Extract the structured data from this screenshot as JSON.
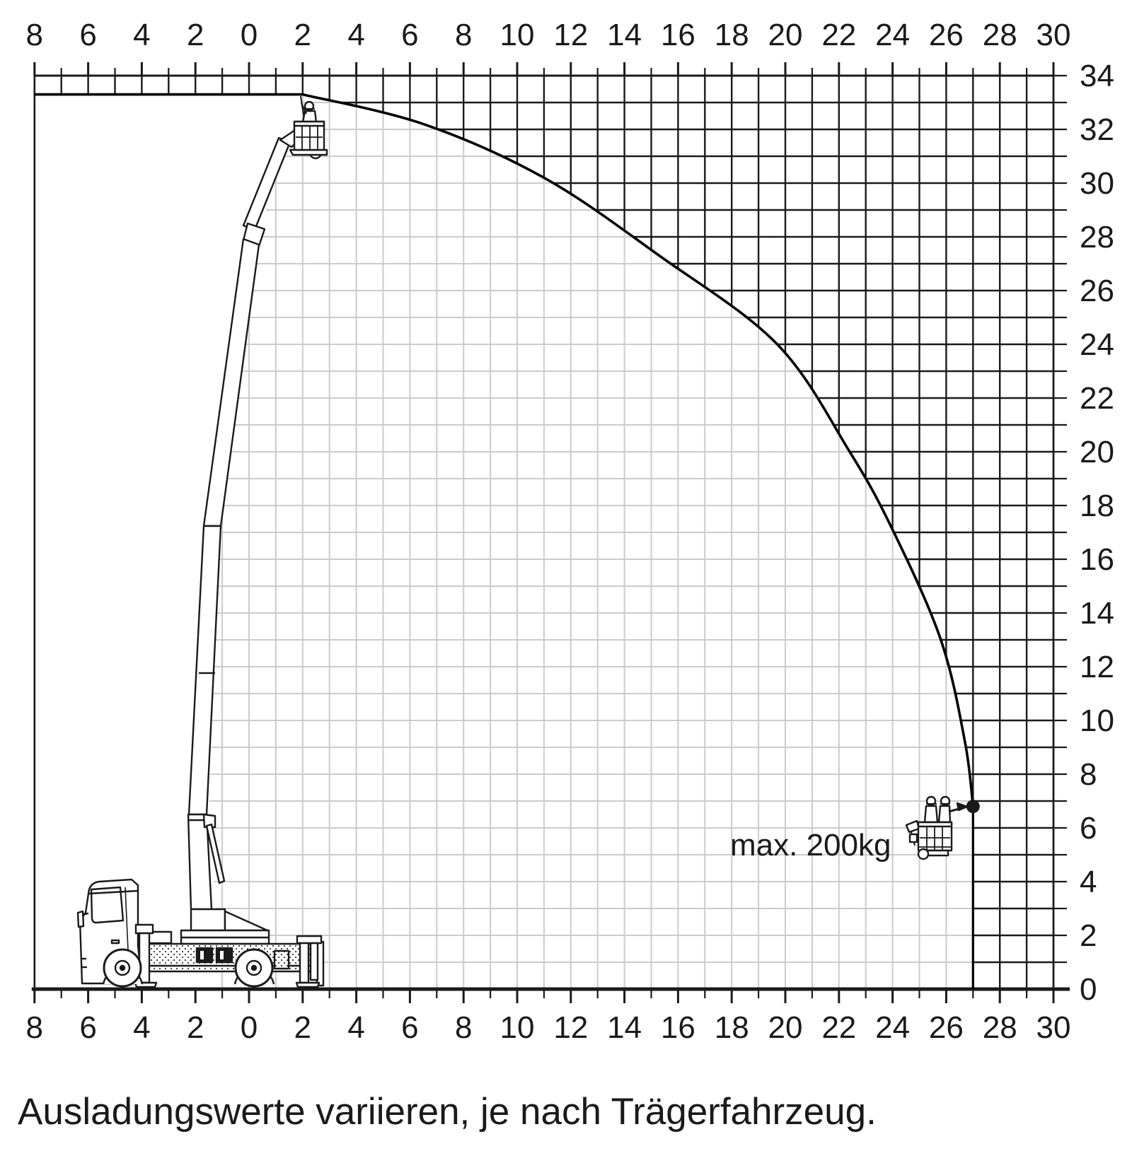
{
  "caption": "Ausladungswerte variieren, je nach Trägerfahrzeug.",
  "annotation": {
    "max_load_label": "max. 200kg"
  },
  "axes": {
    "x_top_labels": [
      "8",
      "6",
      "4",
      "2",
      "0",
      "2",
      "4",
      "6",
      "8",
      "10",
      "12",
      "14",
      "16",
      "18",
      "20",
      "22",
      "24",
      "26",
      "28",
      "30"
    ],
    "x_bottom_labels": [
      "8",
      "6",
      "4",
      "2",
      "0",
      "2",
      "4",
      "6",
      "8",
      "10",
      "12",
      "14",
      "16",
      "18",
      "20",
      "22",
      "24",
      "26",
      "28",
      "30"
    ],
    "y_right_labels": [
      "34",
      "32",
      "30",
      "28",
      "26",
      "24",
      "22",
      "20",
      "18",
      "16",
      "14",
      "12",
      "10",
      "8",
      "6",
      "4",
      "2",
      "0"
    ],
    "x_range_m": [
      -8,
      30
    ],
    "y_range_m": [
      0,
      34
    ],
    "grid_step_m": 1,
    "label_step_m": 2
  },
  "chart_data": {
    "type": "line",
    "title": "",
    "description": "Working-range (reach) diagram of a truck-mounted aerial work platform on a 1 m grid; dark grid outside the working envelope, light grey grid inside",
    "xlim": [
      -8,
      30
    ],
    "ylim": [
      0,
      34
    ],
    "grid": true,
    "plateau": {
      "height_m": 33.3,
      "x_from_m": -8,
      "x_to_m": 2.0
    },
    "envelope_curve": {
      "points": [
        [
          2.0,
          33.3
        ],
        [
          6.5,
          32.2
        ],
        [
          11.0,
          30.2
        ],
        [
          15.3,
          27.3
        ],
        [
          19.7,
          24.0
        ],
        [
          22.4,
          20.0
        ],
        [
          24.0,
          17.1
        ],
        [
          25.8,
          13.0
        ],
        [
          26.7,
          9.2
        ],
        [
          27.0,
          6.8
        ]
      ]
    },
    "max_outreach_point": {
      "x_m": 27.0,
      "y_m": 6.8
    },
    "vertical_limit_x_m": 27.0,
    "max_basket_load": "max. 200kg"
  },
  "colors": {
    "ink": "#1a1a1a",
    "grid_dark": "#1a1a1a",
    "grid_light": "#cbcbcb",
    "background": "#ffffff"
  }
}
